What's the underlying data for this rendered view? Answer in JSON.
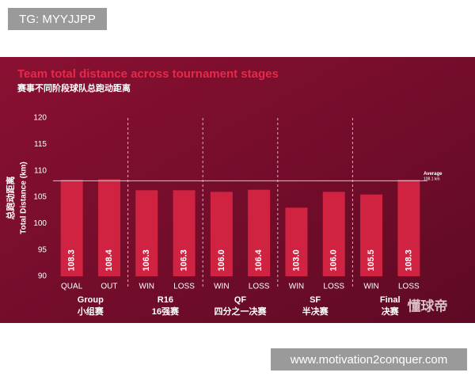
{
  "watermark_top": "TG: MYYJJPP",
  "watermark_bottom": "www.motivation2conquer.com",
  "logo": "懂球帝",
  "chart_data": {
    "type": "bar",
    "title": "Team total distance across tournament stages",
    "subtitle": "赛事不同阶段球队总跑动距离",
    "y_label": "Total Distance (km)",
    "y_label_cn": "总跑动距离",
    "categories": [
      "QUAL",
      "OUT",
      "WIN",
      "LOSS",
      "WIN",
      "LOSS",
      "WIN",
      "LOSS",
      "WIN",
      "LOSS"
    ],
    "values": [
      108.3,
      108.4,
      106.3,
      106.3,
      106.0,
      106.4,
      103.0,
      106.0,
      105.5,
      108.3
    ],
    "value_labels": [
      "108.3",
      "108.4",
      "106.3",
      "106.3",
      "106.0",
      "106.4",
      "103.0",
      "106.0",
      "105.5",
      "108.3"
    ],
    "color": "#cf2341",
    "groups": [
      {
        "label": "Group",
        "sublabel": "小组赛"
      },
      {
        "label": "R16",
        "sublabel": "16强赛"
      },
      {
        "label": "QF",
        "sublabel": "四分之一决赛"
      },
      {
        "label": "SF",
        "sublabel": "半决赛"
      },
      {
        "label": "Final",
        "sublabel": "决赛"
      }
    ],
    "average": {
      "label": "Average",
      "value": 108.1,
      "value_label": "108.1 km"
    },
    "ylim": [
      90,
      120
    ],
    "yticks": [
      90,
      95,
      100,
      105,
      110,
      115,
      120
    ],
    "grid": false
  }
}
